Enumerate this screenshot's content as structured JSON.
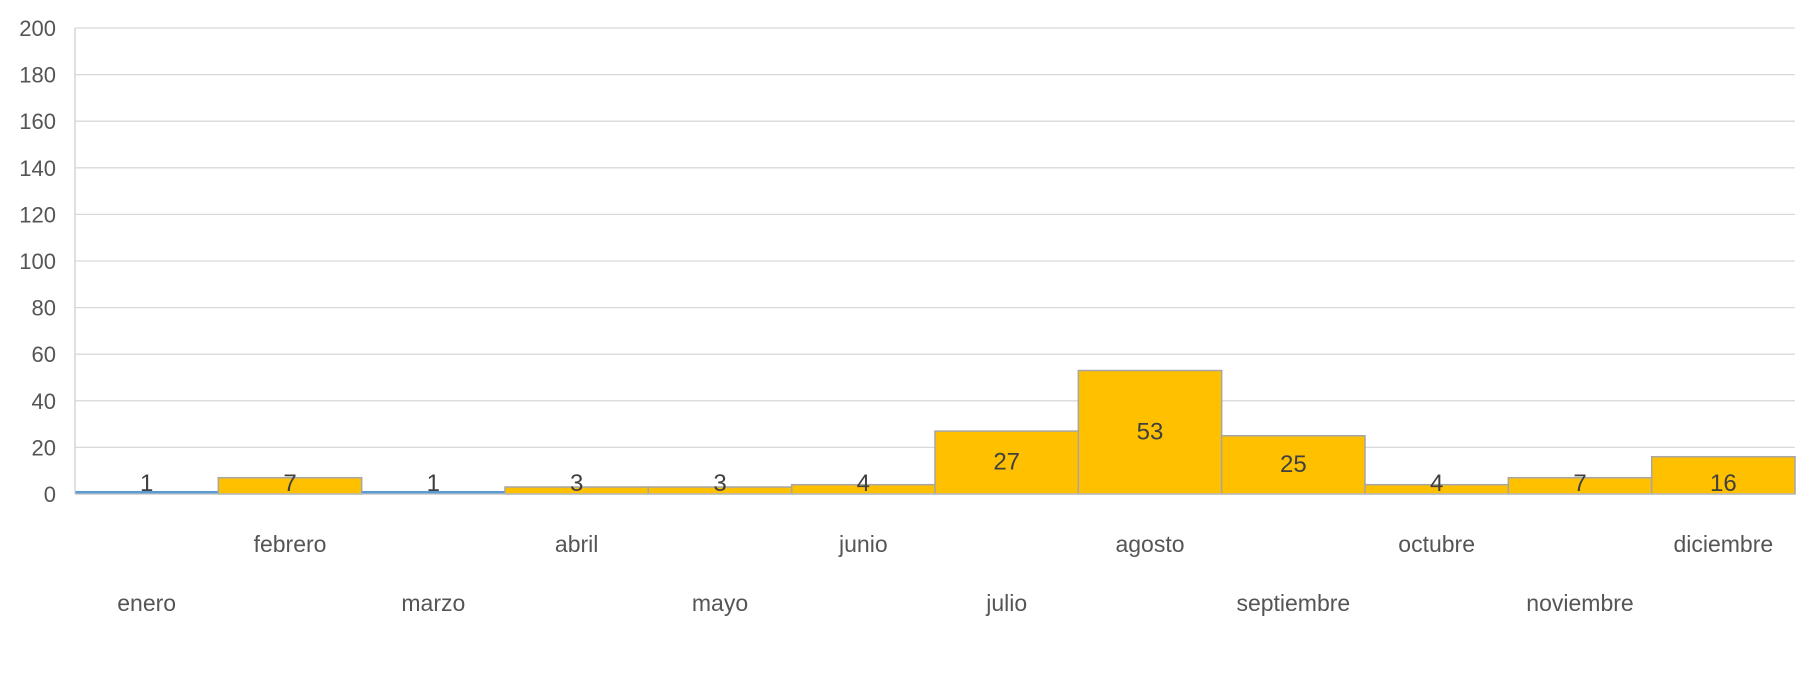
{
  "chart_data": {
    "type": "bar",
    "title": "",
    "xlabel": "",
    "ylabel": "",
    "categories": [
      "enero",
      "febrero",
      "marzo",
      "abril",
      "mayo",
      "junio",
      "julio",
      "agosto",
      "septiembre",
      "octubre",
      "noviembre",
      "diciembre"
    ],
    "values": [
      1,
      7,
      1,
      3,
      3,
      4,
      27,
      53,
      25,
      4,
      7,
      16
    ],
    "data_labels": [
      "1",
      "7",
      "1",
      "3",
      "3",
      "4",
      "27",
      "53",
      "25",
      "4",
      "7",
      "16"
    ],
    "bar_colors": [
      "#5b9bd5",
      "#ffc000",
      "#5b9bd5",
      "#ffc000",
      "#ffc000",
      "#ffc000",
      "#ffc000",
      "#ffc000",
      "#ffc000",
      "#ffc000",
      "#ffc000",
      "#ffc000"
    ],
    "ylim": [
      0,
      200
    ],
    "yticks": [
      0,
      20,
      40,
      60,
      80,
      100,
      120,
      140,
      160,
      180,
      200
    ],
    "ytick_labels": [
      "0",
      "20",
      "40",
      "60",
      "80",
      "100",
      "120",
      "140",
      "160",
      "180",
      "200"
    ],
    "grid": true,
    "legend": "none",
    "gridline_color": "#d9d9d9",
    "bar_border_color": "#a6a6a6"
  }
}
